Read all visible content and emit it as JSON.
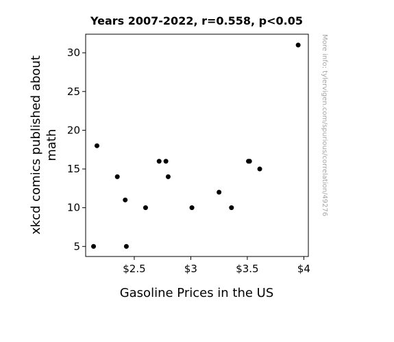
{
  "chart_data": {
    "type": "scatter",
    "title": "Years 2007-2022, r=0.558, p<0.05",
    "xlabel": "Gasoline Prices in the US",
    "ylabel_lines": [
      "xkcd comics published about",
      "math"
    ],
    "side_note": "More info: tylervigen.com/spurious/correlation/49276",
    "xlim": [
      2.07,
      4.04
    ],
    "ylim": [
      3.7,
      32.4
    ],
    "x_ticks": [
      {
        "value": 2.5,
        "label": "$2.5"
      },
      {
        "value": 3.0,
        "label": "$3"
      },
      {
        "value": 3.5,
        "label": "$3.5"
      },
      {
        "value": 4.0,
        "label": "$4"
      }
    ],
    "y_ticks": [
      {
        "value": 5,
        "label": "5"
      },
      {
        "value": 10,
        "label": "10"
      },
      {
        "value": 15,
        "label": "15"
      },
      {
        "value": 20,
        "label": "20"
      },
      {
        "value": 25,
        "label": "25"
      },
      {
        "value": 30,
        "label": "30"
      }
    ],
    "grid": false,
    "marker_color": "#000000",
    "points": [
      {
        "x": 2.14,
        "y": 5
      },
      {
        "x": 2.17,
        "y": 18
      },
      {
        "x": 2.35,
        "y": 14
      },
      {
        "x": 2.42,
        "y": 11
      },
      {
        "x": 2.43,
        "y": 5
      },
      {
        "x": 2.6,
        "y": 10
      },
      {
        "x": 2.72,
        "y": 16
      },
      {
        "x": 2.78,
        "y": 16
      },
      {
        "x": 2.8,
        "y": 14
      },
      {
        "x": 3.01,
        "y": 10
      },
      {
        "x": 3.25,
        "y": 12
      },
      {
        "x": 3.36,
        "y": 10
      },
      {
        "x": 3.51,
        "y": 16
      },
      {
        "x": 3.52,
        "y": 16
      },
      {
        "x": 3.61,
        "y": 15
      },
      {
        "x": 3.95,
        "y": 31
      }
    ]
  }
}
